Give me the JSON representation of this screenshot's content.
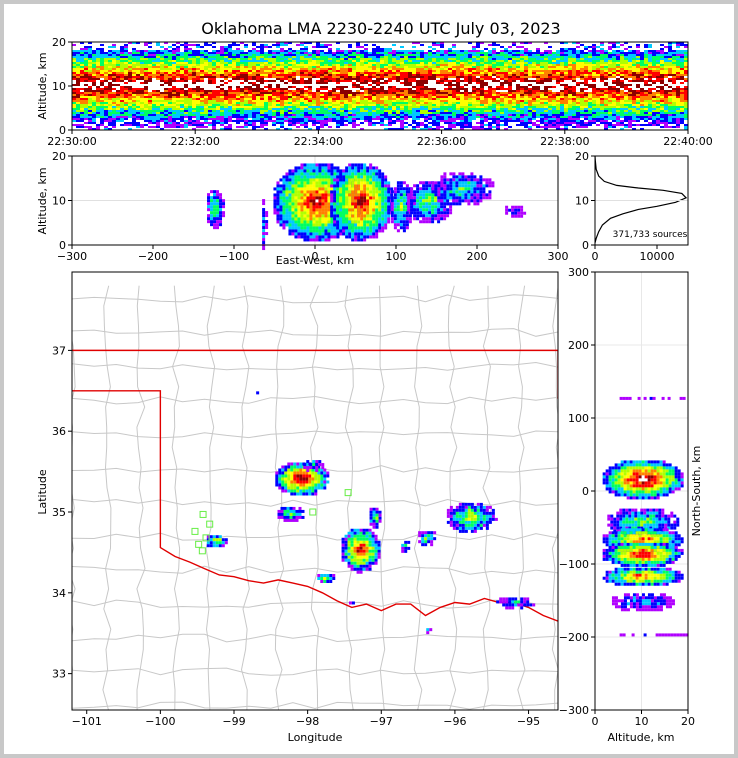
{
  "title": "Oklahoma LMA 2230-2240 UTC July 03, 2023",
  "colors": {
    "outer_frame": "#c8c8c8",
    "state_line": "#e00000",
    "county_line": "#c8c8c8",
    "station": "#66ee44",
    "density_scale": [
      "#ffffff",
      "#b000ff",
      "#0000ff",
      "#00c8ff",
      "#00ff60",
      "#b0ff00",
      "#ffff00",
      "#ff8000",
      "#ff0000",
      "#8b0000",
      "#ffffff"
    ]
  },
  "chart_data": [
    {
      "panel": "time-altitude",
      "type": "heatmap",
      "ylabel": "Altitude, km",
      "ylim": [
        0,
        20
      ],
      "yticks": [
        "0",
        "10",
        "20"
      ],
      "xlim": [
        "22:30:00",
        "22:40:00"
      ],
      "xticks": [
        "22:30:00",
        "22:32:00",
        "22:34:00",
        "22:36:00",
        "22:38:00",
        "22:40:00"
      ],
      "description_values": {
        "peak_altitude_km": 10.5,
        "spread_km": [
          1,
          19
        ]
      }
    },
    {
      "panel": "east-west-altitude",
      "type": "heatmap",
      "xlabel": "East-West, km",
      "ylabel": "Altitude, km",
      "xlim": [
        -300,
        300
      ],
      "ylim": [
        0,
        20
      ],
      "xticks": [
        "−300",
        "−200",
        "−100",
        "0",
        "100",
        "200",
        "300"
      ],
      "yticks": [
        "0",
        "10",
        "20"
      ],
      "cells": [
        {
          "x": -125,
          "alt": 8.5,
          "w": 12,
          "h": 9,
          "intensity": 5
        },
        {
          "x": -65,
          "alt": 5,
          "w": 4,
          "h": 12,
          "intensity": 3
        },
        {
          "x": 0,
          "alt": 10,
          "w": 55,
          "h": 18,
          "intensity": 9
        },
        {
          "x": 55,
          "alt": 10,
          "w": 40,
          "h": 18,
          "intensity": 9
        },
        {
          "x": 105,
          "alt": 9,
          "w": 15,
          "h": 12,
          "intensity": 5
        },
        {
          "x": 140,
          "alt": 10,
          "w": 30,
          "h": 10,
          "intensity": 5
        },
        {
          "x": 180,
          "alt": 13,
          "w": 40,
          "h": 8,
          "intensity": 4
        },
        {
          "x": 245,
          "alt": 8,
          "w": 14,
          "h": 3,
          "intensity": 2
        }
      ]
    },
    {
      "panel": "altitude-histogram",
      "type": "line",
      "xlim": [
        0,
        15000
      ],
      "ylim": [
        0,
        20
      ],
      "xticks": [
        "0",
        "10000"
      ],
      "yticks": [
        "0",
        "10",
        "20"
      ],
      "annotation": "371,733 sources",
      "x": [
        0,
        200,
        600,
        1200,
        2500,
        4500,
        7000,
        10000,
        13000,
        14700,
        14000,
        11000,
        7000,
        3500,
        1500,
        600,
        200,
        50,
        0
      ],
      "y": [
        0.5,
        1.5,
        3,
        4.5,
        6,
        7,
        8,
        8.7,
        9.6,
        10.6,
        11.6,
        12.3,
        12.8,
        13.4,
        14.3,
        15.5,
        17,
        19,
        20
      ]
    },
    {
      "panel": "plan-view",
      "type": "heatmap",
      "xlabel": "Longitude",
      "ylabel": "Latitude",
      "xlim": [
        -101.2,
        -94.6
      ],
      "ylim": [
        32.55,
        37.97
      ],
      "xticks": [
        "−101",
        "−100",
        "−99",
        "−98",
        "−97",
        "−96",
        "−95"
      ],
      "yticks": [
        "33",
        "34",
        "35",
        "36",
        "37"
      ],
      "cells": [
        {
          "lon": -98.1,
          "lat": 35.43,
          "rx": 0.38,
          "ry": 0.22,
          "intensity": 10
        },
        {
          "lon": -98.25,
          "lat": 35.0,
          "rx": 0.2,
          "ry": 0.1,
          "intensity": 5
        },
        {
          "lon": -99.25,
          "lat": 34.66,
          "rx": 0.16,
          "ry": 0.09,
          "intensity": 6
        },
        {
          "lon": -97.3,
          "lat": 34.55,
          "rx": 0.28,
          "ry": 0.28,
          "intensity": 9
        },
        {
          "lon": -97.1,
          "lat": 34.95,
          "rx": 0.1,
          "ry": 0.14,
          "intensity": 5
        },
        {
          "lon": -97.78,
          "lat": 34.2,
          "rx": 0.13,
          "ry": 0.07,
          "intensity": 6
        },
        {
          "lon": -96.7,
          "lat": 34.6,
          "rx": 0.07,
          "ry": 0.08,
          "intensity": 5
        },
        {
          "lon": -96.4,
          "lat": 34.7,
          "rx": 0.14,
          "ry": 0.1,
          "intensity": 5
        },
        {
          "lon": -95.8,
          "lat": 34.95,
          "rx": 0.35,
          "ry": 0.2,
          "intensity": 6
        },
        {
          "lon": -95.2,
          "lat": 33.9,
          "rx": 0.28,
          "ry": 0.08,
          "intensity": 3
        },
        {
          "lon": -97.95,
          "lat": 35.6,
          "rx": 0.15,
          "ry": 0.08,
          "intensity": 3
        },
        {
          "lon": -98.7,
          "lat": 36.49,
          "rx": 0.04,
          "ry": 0.04,
          "intensity": 3
        },
        {
          "lon": -96.38,
          "lat": 33.56,
          "rx": 0.05,
          "ry": 0.04,
          "intensity": 3
        },
        {
          "lon": -97.4,
          "lat": 33.9,
          "rx": 0.08,
          "ry": 0.03,
          "intensity": 2
        }
      ],
      "stations": [
        {
          "lon": -99.42,
          "lat": 34.97
        },
        {
          "lon": -99.33,
          "lat": 34.85
        },
        {
          "lon": -99.53,
          "lat": 34.76
        },
        {
          "lon": -99.38,
          "lat": 34.68
        },
        {
          "lon": -99.48,
          "lat": 34.6
        },
        {
          "lon": -99.43,
          "lat": 34.52
        },
        {
          "lon": -97.93,
          "lat": 35.0
        },
        {
          "lon": -97.45,
          "lat": 35.24
        }
      ]
    },
    {
      "panel": "north-south-altitude",
      "type": "heatmap",
      "xlabel": "Altitude, km",
      "ylabel": "North-South, km",
      "xlim": [
        0,
        20
      ],
      "ylim": [
        -300,
        300
      ],
      "xticks": [
        "0",
        "10",
        "20"
      ],
      "yticks": [
        "−300",
        "−200",
        "−100",
        "0",
        "100",
        "200",
        "300"
      ],
      "cells": [
        {
          "alt": 10,
          "ns": 18,
          "w": 9,
          "h": 28,
          "intensity": 10
        },
        {
          "alt": 10,
          "ns": -40,
          "w": 8,
          "h": 20,
          "intensity": 5
        },
        {
          "alt": 10,
          "ns": -65,
          "w": 9,
          "h": 18,
          "intensity": 8
        },
        {
          "alt": 10,
          "ns": -85,
          "w": 9,
          "h": 18,
          "intensity": 9
        },
        {
          "alt": 10,
          "ns": -115,
          "w": 9,
          "h": 14,
          "intensity": 8
        },
        {
          "alt": 10,
          "ns": -150,
          "w": 7,
          "h": 14,
          "intensity": 3
        },
        {
          "alt": 12,
          "ns": 130,
          "w": 8,
          "h": 3,
          "intensity": 1
        },
        {
          "alt": 12,
          "ns": -195,
          "w": 8,
          "h": 4,
          "intensity": 1
        }
      ]
    }
  ]
}
